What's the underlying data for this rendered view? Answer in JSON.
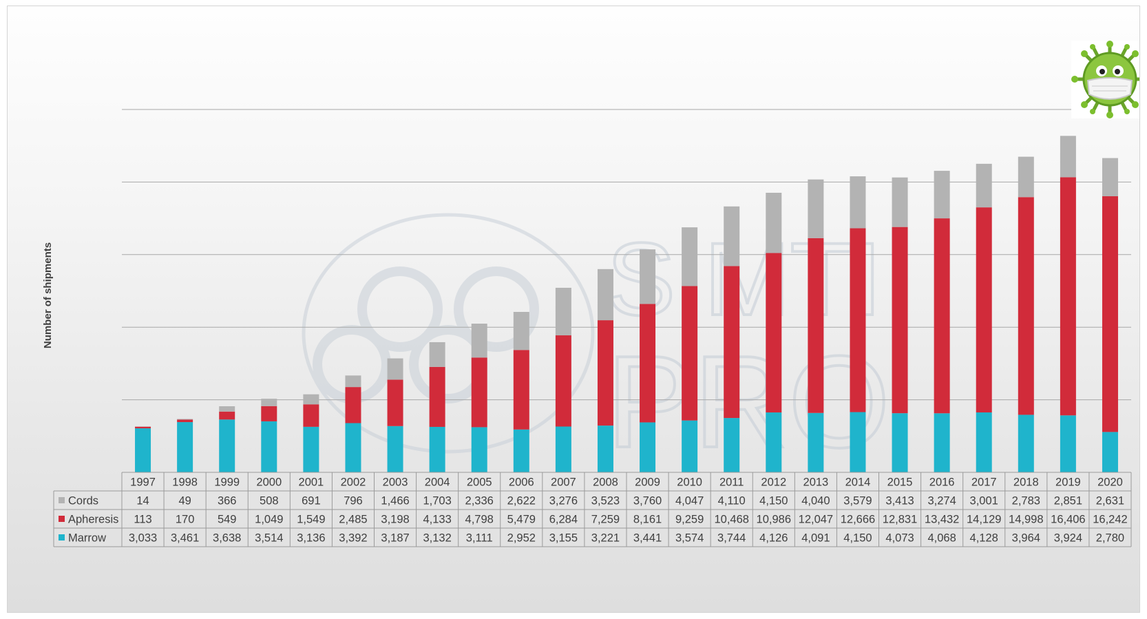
{
  "chart_data": {
    "type": "bar",
    "stacked": true,
    "title": "",
    "xlabel": "",
    "ylabel": "Number of shipments",
    "categories": [
      "1997",
      "1998",
      "1999",
      "2000",
      "2001",
      "2002",
      "2003",
      "2004",
      "2005",
      "2006",
      "2007",
      "2008",
      "2009",
      "2010",
      "2011",
      "2012",
      "2013",
      "2014",
      "2015",
      "2016",
      "2017",
      "2018",
      "2019",
      "2020"
    ],
    "series": [
      {
        "name": "Marrow",
        "color": "#1fb4cc",
        "values": [
          3033,
          3461,
          3638,
          3514,
          3136,
          3392,
          3187,
          3132,
          3111,
          2952,
          3155,
          3221,
          3441,
          3574,
          3744,
          4126,
          4091,
          4150,
          4073,
          4068,
          4128,
          3964,
          3924,
          2780
        ],
        "labels": [
          "3,033",
          "3,461",
          "3,638",
          "3,514",
          "3,136",
          "3,392",
          "3,187",
          "3,132",
          "3,111",
          "2,952",
          "3,155",
          "3,221",
          "3,441",
          "3,574",
          "3,744",
          "4,126",
          "4,091",
          "4,150",
          "4,073",
          "4,068",
          "4,128",
          "3,964",
          "3,924",
          "2,780"
        ]
      },
      {
        "name": "Apheresis",
        "color": "#d12b3a",
        "values": [
          113,
          170,
          549,
          1049,
          1549,
          2485,
          3198,
          4133,
          4798,
          5479,
          6284,
          7259,
          8161,
          9259,
          10468,
          10986,
          12047,
          12666,
          12831,
          13432,
          14129,
          14998,
          16406,
          16242
        ],
        "labels": [
          "113",
          "170",
          "549",
          "1,049",
          "1,549",
          "2,485",
          "3,198",
          "4,133",
          "4,798",
          "5,479",
          "6,284",
          "7,259",
          "8,161",
          "9,259",
          "10,468",
          "10,986",
          "12,047",
          "12,666",
          "12,831",
          "13,432",
          "14,129",
          "14,998",
          "16,406",
          "16,242"
        ]
      },
      {
        "name": "Cords",
        "color": "#b3b3b3",
        "values": [
          14,
          49,
          366,
          508,
          691,
          796,
          1466,
          1703,
          2336,
          2622,
          3276,
          3523,
          3760,
          4047,
          4110,
          4150,
          4040,
          3579,
          3413,
          3274,
          3001,
          2783,
          2851,
          2631
        ],
        "labels": [
          "14",
          "49",
          "366",
          "508",
          "691",
          "796",
          "1,466",
          "1,703",
          "2,336",
          "2,622",
          "3,276",
          "3,523",
          "3,760",
          "4,047",
          "4,110",
          "4,150",
          "4,040",
          "3,579",
          "3,413",
          "3,274",
          "3,001",
          "2,783",
          "2,851",
          "2,631"
        ]
      }
    ],
    "table_row_order": [
      "Cords",
      "Apheresis",
      "Marrow"
    ],
    "ylim": [
      0,
      25000
    ],
    "grid": true,
    "legend": "data-table"
  },
  "watermark": {
    "line1": "SIMTI",
    "line2": "PRO"
  },
  "icon": "virus-with-mask-icon"
}
